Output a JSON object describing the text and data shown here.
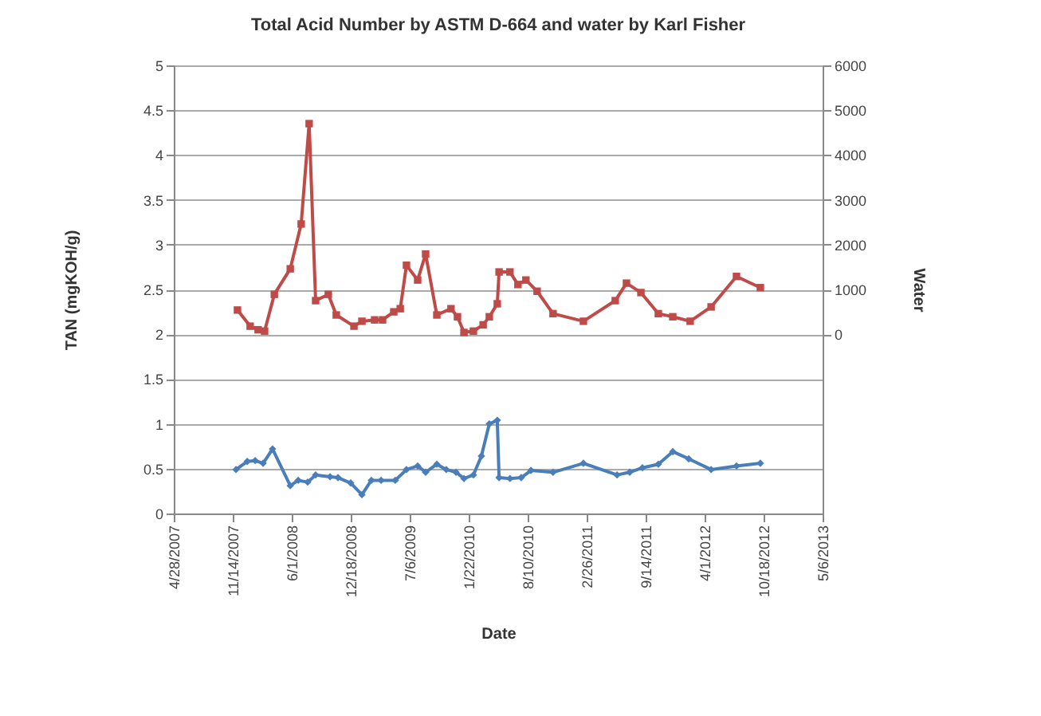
{
  "chart_data": {
    "type": "line",
    "title": "Total Acid Number by ASTM D-664 and water by Karl Fisher",
    "xlabel": "Date",
    "ylabel": "TAN (mgKOH/g)",
    "y2label": "Water",
    "xlim": [
      "2007-04-28",
      "2013-05-06"
    ],
    "xticks": [
      {
        "value": "2007-04-28",
        "label": "4/28/2007"
      },
      {
        "value": "2007-11-14",
        "label": "11/14/2007"
      },
      {
        "value": "2008-06-01",
        "label": "6/1/2008"
      },
      {
        "value": "2008-12-18",
        "label": "12/18/2008"
      },
      {
        "value": "2009-07-06",
        "label": "7/6/2009"
      },
      {
        "value": "2010-01-22",
        "label": "1/22/2010"
      },
      {
        "value": "2010-08-10",
        "label": "8/10/2010"
      },
      {
        "value": "2011-02-26",
        "label": "2/26/2011"
      },
      {
        "value": "2011-09-14",
        "label": "9/14/2011"
      },
      {
        "value": "2012-04-01",
        "label": "4/1/2012"
      },
      {
        "value": "2012-10-18",
        "label": "10/18/2012"
      },
      {
        "value": "2013-05-06",
        "label": "5/6/2013"
      }
    ],
    "ylim": [
      0,
      5
    ],
    "yticks": [
      0,
      0.5,
      1,
      1.5,
      2,
      2.5,
      3,
      3.5,
      4,
      4.5,
      5
    ],
    "y2lim": [
      -4000,
      6000
    ],
    "y2ticks": [
      0,
      1000,
      2000,
      3000,
      4000,
      5000,
      6000
    ],
    "grid": "y",
    "line_style": "solid",
    "series": [
      {
        "color": "#4a7ebb",
        "marker": "diamond",
        "x": [
          "2007-11-25",
          "2008-01-02",
          "2008-01-29",
          "2008-02-25",
          "2008-03-28",
          "2008-05-27",
          "2008-06-23",
          "2008-07-25",
          "2008-08-21",
          "2008-10-09",
          "2008-11-05",
          "2008-12-18",
          "2009-01-25",
          "2009-02-26",
          "2009-03-31",
          "2009-05-18",
          "2009-06-25",
          "2009-08-02",
          "2009-08-29",
          "2009-10-06",
          "2009-11-07",
          "2009-12-10",
          "2010-01-06",
          "2010-02-07",
          "2010-03-06",
          "2010-04-02",
          "2010-04-29",
          "2010-05-05",
          "2010-06-11",
          "2010-07-19",
          "2010-08-21",
          "2010-11-04",
          "2011-02-15",
          "2011-06-09",
          "2011-07-22",
          "2011-09-03",
          "2011-10-27",
          "2011-12-15",
          "2012-02-07",
          "2012-04-23",
          "2012-07-18",
          "2012-10-07"
        ],
        "values": [
          0.49,
          0.58,
          0.59,
          0.56,
          0.72,
          0.31,
          0.37,
          0.35,
          0.43,
          0.41,
          0.4,
          0.34,
          0.21,
          0.37,
          0.37,
          0.37,
          0.49,
          0.53,
          0.46,
          0.55,
          0.49,
          0.46,
          0.39,
          0.43,
          0.64,
          1.0,
          1.04,
          0.4,
          0.39,
          0.4,
          0.48,
          0.46,
          0.56,
          0.43,
          0.46,
          0.51,
          0.55,
          0.69,
          0.61,
          0.49,
          0.53,
          0.56
        ]
      },
      {
        "color": "#be4b48",
        "marker": "square",
        "axis": "y2",
        "x": [
          "2007-11-30",
          "2008-01-12",
          "2008-02-08",
          "2008-03-01",
          "2008-04-03",
          "2008-05-27",
          "2008-07-03",
          "2008-07-30",
          "2008-08-21",
          "2008-10-03",
          "2008-10-30",
          "2008-12-29",
          "2009-01-25",
          "2009-03-09",
          "2009-04-05",
          "2009-05-13",
          "2009-06-04",
          "2009-06-25",
          "2009-08-02",
          "2009-08-29",
          "2009-10-06",
          "2009-11-23",
          "2009-12-15",
          "2010-01-06",
          "2010-02-07",
          "2010-03-12",
          "2010-04-02",
          "2010-04-29",
          "2010-05-05",
          "2010-06-11",
          "2010-07-08",
          "2010-08-04",
          "2010-09-11",
          "2010-11-04",
          "2011-02-15",
          "2011-06-03",
          "2011-07-11",
          "2011-08-29",
          "2011-10-27",
          "2011-12-15",
          "2012-02-12",
          "2012-04-23",
          "2012-07-18",
          "2012-10-07"
        ],
        "values": [
          540,
          180,
          100,
          70,
          890,
          1460,
          2460,
          4700,
          750,
          890,
          430,
          180,
          290,
          320,
          320,
          500,
          570,
          1540,
          1210,
          1790,
          430,
          570,
          390,
          40,
          70,
          210,
          390,
          680,
          1390,
          1390,
          1110,
          1210,
          960,
          460,
          290,
          750,
          1140,
          930,
          460,
          390,
          290,
          610,
          1290,
          1040
        ]
      }
    ]
  }
}
